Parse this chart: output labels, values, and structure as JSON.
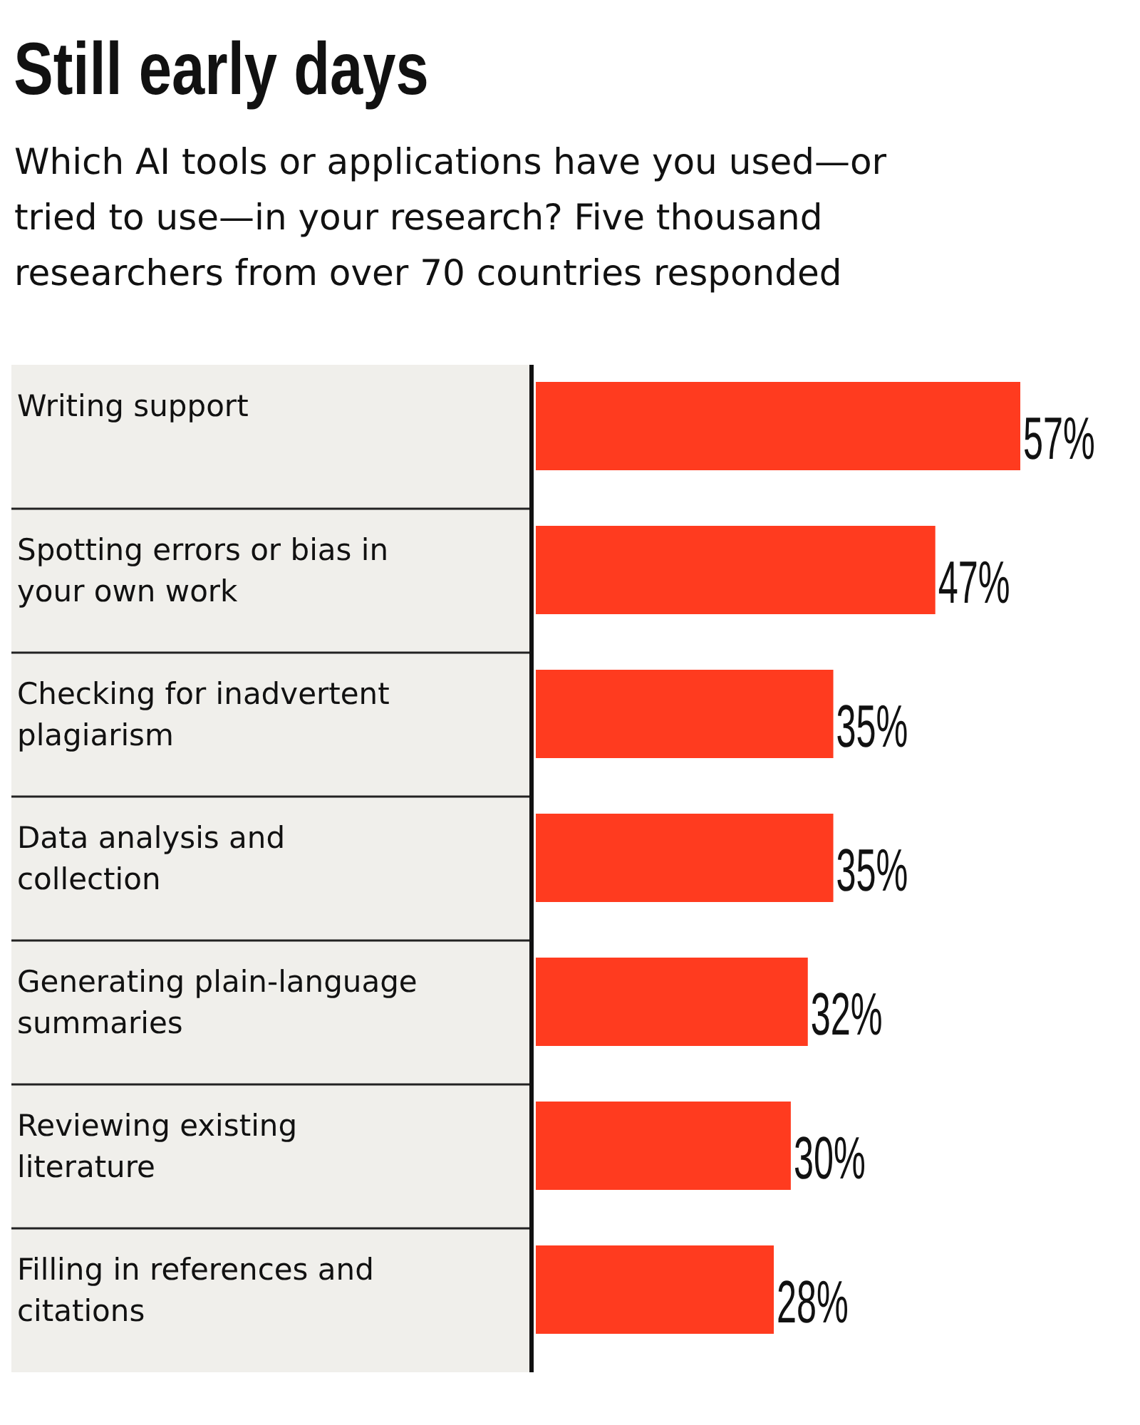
{
  "chart_data": {
    "type": "bar",
    "orientation": "horizontal",
    "title": "Still early days",
    "subtitle": "Which AI tools or applications have you used—or tried to use—in your research? Five thousand researchers from over 70 countries responded",
    "categories": [
      "Writing support",
      "Spotting errors or bias in your own work",
      "Checking for inadvertent plagiarism",
      "Data analysis and collection",
      "Generating plain-language summaries",
      "Reviewing existing literature",
      "Filling in references and citations"
    ],
    "values": [
      57,
      47,
      35,
      35,
      32,
      30,
      28
    ],
    "value_labels": [
      "57%",
      "47%",
      "35%",
      "35%",
      "32%",
      "30%",
      "28%"
    ],
    "color": "#ff3b1f"
  }
}
